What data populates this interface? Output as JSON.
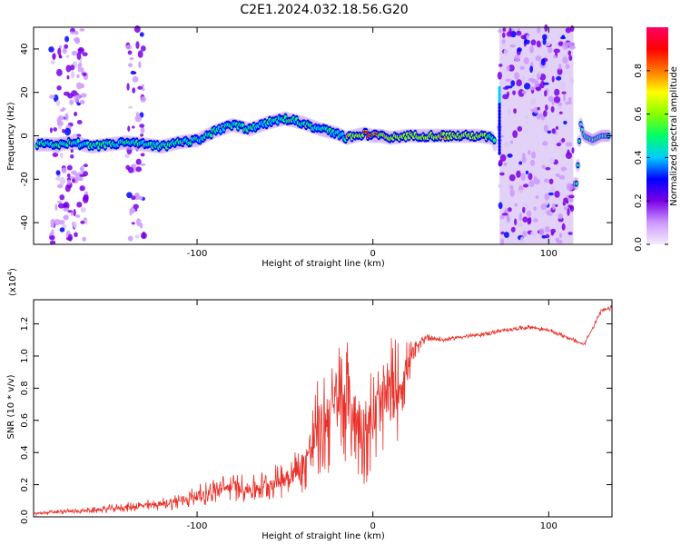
{
  "title": "C2E1.2024.032.18.56.G20",
  "chart_data": [
    {
      "type": "heatmap",
      "xlabel": "Height of straight line (km)",
      "ylabel": "Frequency (Hz)",
      "xlim": [
        -193,
        136
      ],
      "ylim": [
        -50,
        50
      ],
      "xticks": [
        -100,
        0,
        100
      ],
      "yticks": [
        -40,
        -20,
        0,
        20,
        40
      ],
      "ridge": {
        "x": [
          -193,
          -180,
          -170,
          -160,
          -150,
          -140,
          -130,
          -120,
          -110,
          -100,
          -90,
          -80,
          -70,
          -60,
          -50,
          -40,
          -30,
          -20,
          -15,
          -10,
          -5,
          0,
          5,
          10,
          20,
          30,
          40,
          50,
          60,
          68,
          70,
          72,
          74
        ],
        "freq": [
          -4,
          -4,
          -3,
          -5,
          -4,
          -3,
          -4,
          -5,
          -3,
          -2,
          2,
          5,
          3,
          6,
          8,
          6,
          3,
          1,
          -1,
          0,
          1,
          0,
          0,
          -1,
          0,
          0,
          0,
          0,
          0,
          -1,
          -5,
          10,
          22
        ]
      },
      "noise_bands_km": [
        [
          -183,
          -163
        ],
        [
          -140,
          -130
        ],
        [
          72,
          114
        ]
      ],
      "colorbar": {
        "label": "Normalized spectral amplitude",
        "range": [
          0.0,
          1.0
        ],
        "ticks": [
          0.0,
          0.2,
          0.4,
          0.6,
          0.8
        ],
        "colors": [
          "#f4ecfa",
          "#cc99ff",
          "#7a00e6",
          "#0000ff",
          "#00ccff",
          "#00ff66",
          "#88ff00",
          "#ffff00",
          "#ff7700",
          "#ff0000",
          "#ff0066"
        ]
      }
    },
    {
      "type": "line",
      "xlabel": "Height of straight line (km)",
      "ylabel": "SNR (10 * v/v)",
      "y_scale_label": "(x10",
      "y_scale_exp": "4",
      "xlim": [
        -193,
        136
      ],
      "ylim": [
        0.0,
        1.35
      ],
      "xticks": [
        -100,
        0,
        100
      ],
      "yticks": [
        0.0,
        0.2,
        0.4,
        0.6,
        0.8,
        1.0,
        1.2
      ],
      "series": [
        {
          "color": "#e8312a",
          "x": [
            -193,
            -180,
            -160,
            -140,
            -120,
            -110,
            -100,
            -90,
            -80,
            -70,
            -60,
            -50,
            -40,
            -35,
            -30,
            -25,
            -20,
            -15,
            -10,
            -5,
            0,
            5,
            10,
            15,
            20,
            25,
            30,
            40,
            50,
            60,
            70,
            80,
            90,
            100,
            110,
            120,
            130,
            136
          ],
          "y": [
            0.02,
            0.03,
            0.04,
            0.06,
            0.08,
            0.1,
            0.13,
            0.16,
            0.19,
            0.17,
            0.2,
            0.24,
            0.3,
            0.45,
            0.55,
            0.65,
            0.7,
            0.75,
            0.6,
            0.55,
            0.6,
            0.7,
            0.75,
            0.8,
            0.95,
            1.05,
            1.12,
            1.1,
            1.12,
            1.13,
            1.15,
            1.17,
            1.18,
            1.16,
            1.12,
            1.07,
            1.28,
            1.3
          ],
          "noise_amp": [
            0.015,
            0.015,
            0.02,
            0.03,
            0.04,
            0.06,
            0.07,
            0.08,
            0.09,
            0.09,
            0.1,
            0.12,
            0.16,
            0.3,
            0.35,
            0.4,
            0.4,
            0.4,
            0.35,
            0.35,
            0.35,
            0.4,
            0.4,
            0.3,
            0.15,
            0.05,
            0.03,
            0.015,
            0.015,
            0.015,
            0.015,
            0.015,
            0.015,
            0.015,
            0.015,
            0.015,
            0.015,
            0.015
          ]
        }
      ]
    }
  ]
}
